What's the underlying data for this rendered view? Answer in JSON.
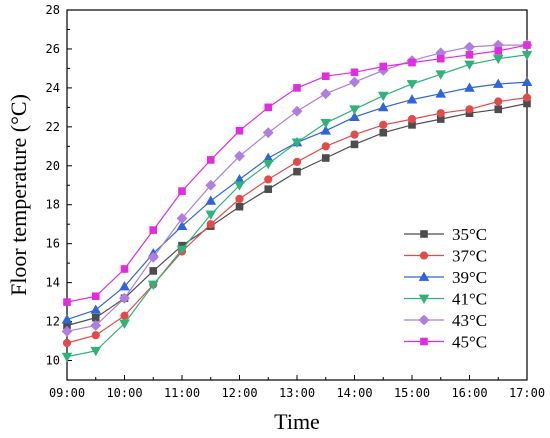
{
  "chart_data": {
    "type": "line",
    "xlabel": "Time",
    "ylabel": "Floor temperature (°C)",
    "x_ticks": [
      "09:00",
      "10:00",
      "11:00",
      "12:00",
      "13:00",
      "14:00",
      "15:00",
      "16:00",
      "17:00"
    ],
    "x_hours": [
      9,
      9.5,
      10,
      10.5,
      11,
      11.5,
      12,
      12.5,
      13,
      13.5,
      14,
      14.5,
      15,
      15.5,
      16,
      16.5,
      17
    ],
    "xlim": [
      9,
      17
    ],
    "ylim": [
      9,
      28
    ],
    "y_ticks": [
      10,
      12,
      14,
      16,
      18,
      20,
      22,
      24,
      26,
      28
    ],
    "grid": false,
    "legend_position": "bottom-right",
    "series": [
      {
        "name": "35°C",
        "marker": "square",
        "color": "#4d4d4d",
        "values": [
          11.8,
          12.2,
          13.2,
          14.6,
          15.9,
          16.9,
          17.9,
          18.8,
          19.7,
          20.4,
          21.1,
          21.7,
          22.1,
          22.4,
          22.7,
          22.9,
          23.2
        ]
      },
      {
        "name": "37°C",
        "marker": "circle",
        "color": "#e34a4a",
        "values": [
          10.9,
          11.3,
          12.3,
          13.9,
          15.6,
          17.0,
          18.3,
          19.3,
          20.2,
          21.0,
          21.6,
          22.1,
          22.4,
          22.7,
          22.9,
          23.3,
          23.5
        ]
      },
      {
        "name": "39°C",
        "marker": "triangle-up",
        "color": "#2f65d6",
        "values": [
          12.1,
          12.6,
          13.8,
          15.5,
          16.9,
          18.2,
          19.3,
          20.4,
          21.2,
          21.8,
          22.5,
          23.0,
          23.4,
          23.7,
          24.0,
          24.2,
          24.3
        ]
      },
      {
        "name": "41°C",
        "marker": "triangle-down",
        "color": "#2fb37a",
        "values": [
          10.2,
          10.5,
          11.9,
          13.9,
          15.7,
          17.5,
          19.0,
          20.1,
          21.2,
          22.2,
          22.9,
          23.6,
          24.2,
          24.7,
          25.2,
          25.5,
          25.7
        ]
      },
      {
        "name": "43°C",
        "marker": "diamond",
        "color": "#b07ee0",
        "values": [
          11.5,
          11.8,
          13.2,
          15.3,
          17.3,
          19.0,
          20.5,
          21.7,
          22.8,
          23.7,
          24.3,
          24.9,
          25.4,
          25.8,
          26.1,
          26.2,
          26.2
        ]
      },
      {
        "name": "45°C",
        "marker": "square",
        "color": "#e02de0",
        "values": [
          13.0,
          13.3,
          14.7,
          16.7,
          18.7,
          20.3,
          21.8,
          23.0,
          24.0,
          24.6,
          24.8,
          25.1,
          25.3,
          25.5,
          25.7,
          25.9,
          26.2
        ]
      }
    ]
  }
}
